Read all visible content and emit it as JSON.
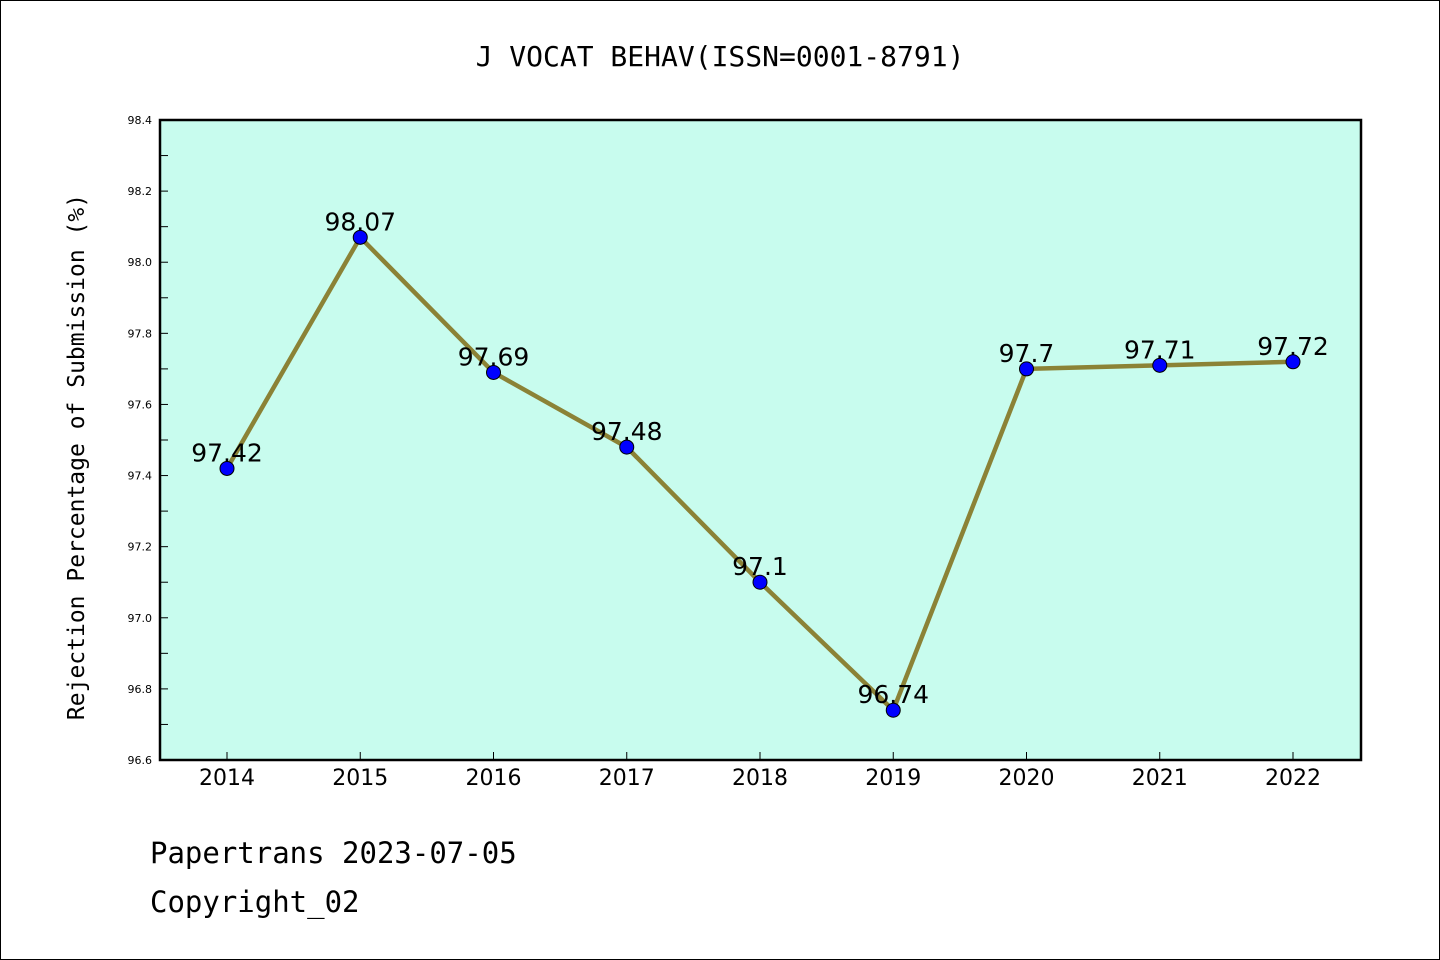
{
  "footer": {
    "line1": "Papertrans 2023-07-05",
    "line2": "Copyright_02"
  },
  "colors": {
    "plot_bg": "#c8fcee",
    "line": "#8b8236",
    "marker": "#0000ff"
  },
  "chart_data": {
    "type": "line",
    "title": "J VOCAT BEHAV(ISSN=0001-8791)",
    "xlabel": "",
    "ylabel": "Rejection Percentage of Submission (%)",
    "categories": [
      "2014",
      "2015",
      "2016",
      "2017",
      "2018",
      "2019",
      "2020",
      "2021",
      "2022"
    ],
    "series": [
      {
        "values": [
          97.42,
          98.07,
          97.69,
          97.48,
          97.1,
          96.74,
          97.7,
          97.71,
          97.72
        ],
        "labels": [
          "97.42",
          "98.07",
          "97.69",
          "97.48",
          "97.1",
          "96.74",
          "97.7",
          "97.71",
          "97.72"
        ]
      }
    ],
    "ylim": [
      96.6,
      98.4
    ],
    "yticks": [
      "96.6",
      "96.8",
      "97.0",
      "97.2",
      "97.4",
      "97.6",
      "97.8",
      "98.0",
      "98.2",
      "98.4"
    ],
    "grid": false,
    "legend": "none"
  }
}
